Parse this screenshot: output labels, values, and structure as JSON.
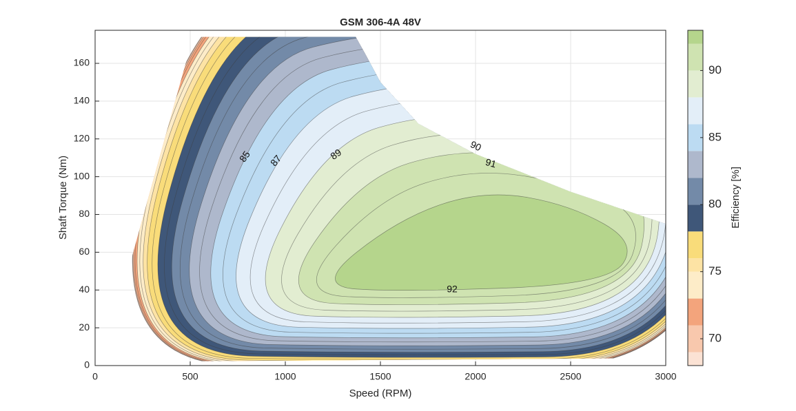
{
  "chart_data": {
    "type": "contour",
    "title": "GSM 306-4A 48V",
    "x_label": "Speed (RPM)",
    "y_label": "Shaft Torque (Nm)",
    "colorbar_label": "Efficiency [%]",
    "xlim": [
      0,
      3000
    ],
    "ylim": [
      0,
      177.5
    ],
    "xticks": [
      0,
      500,
      1000,
      1500,
      2000,
      2500,
      3000
    ],
    "yticks": [
      0,
      20,
      40,
      60,
      80,
      100,
      120,
      140,
      160
    ],
    "grid": true,
    "levels": [
      68,
      69,
      71,
      73,
      75,
      76,
      78,
      80,
      82,
      84,
      86,
      88,
      90,
      92,
      93
    ],
    "colors": [
      "#fbe2d4",
      "#f8c8ad",
      "#f3a47c",
      "#fdecc8",
      "#fde3a4",
      "#f9dc7a",
      "#3f5779",
      "#738aa8",
      "#aeb8cc",
      "#bcdbf2",
      "#e3eef8",
      "#e2edd1",
      "#cfe3b1",
      "#b5d58c"
    ],
    "contour_levels": [
      69,
      70,
      71,
      72,
      73,
      74,
      75,
      76,
      77,
      78,
      79,
      80,
      81,
      82,
      83,
      84,
      85,
      86,
      87,
      88,
      89,
      90,
      91,
      92
    ],
    "contour_labels": [
      85,
      87,
      89,
      90,
      91,
      92
    ],
    "colorbar_ticks": [
      70,
      75,
      80,
      85,
      90
    ]
  }
}
